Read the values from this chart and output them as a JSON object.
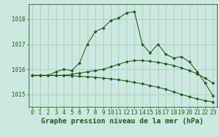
{
  "background_color": "#cce8e0",
  "grid_color": "#aaccbb",
  "line_color": "#1a5c1a",
  "xlabel": "Graphe pression niveau de la mer (hPa)",
  "xlabel_fontsize": 7.5,
  "tick_fontsize": 6,
  "yticks": [
    1015,
    1016,
    1017,
    1018
  ],
  "xticks": [
    0,
    1,
    2,
    3,
    4,
    5,
    6,
    7,
    8,
    9,
    10,
    11,
    12,
    13,
    14,
    15,
    16,
    17,
    18,
    19,
    20,
    21,
    22,
    23
  ],
  "xlim": [
    -0.5,
    23.5
  ],
  "ylim": [
    1014.5,
    1018.6
  ],
  "series": {
    "line1": [
      1015.75,
      1015.75,
      1015.75,
      1015.9,
      1016.0,
      1015.95,
      1016.25,
      1017.0,
      1017.5,
      1017.65,
      1017.95,
      1018.05,
      1018.25,
      1018.3,
      1017.0,
      1016.65,
      1017.0,
      1016.6,
      1016.45,
      1016.5,
      1016.3,
      1015.9,
      1015.45,
      1014.95
    ],
    "line2": [
      1015.75,
      1015.75,
      1015.75,
      1015.75,
      1015.75,
      1015.8,
      1015.85,
      1015.9,
      1015.95,
      1016.0,
      1016.1,
      1016.2,
      1016.3,
      1016.35,
      1016.35,
      1016.32,
      1016.28,
      1016.22,
      1016.15,
      1016.05,
      1015.95,
      1015.82,
      1015.65,
      1015.45
    ],
    "line3": [
      1015.75,
      1015.75,
      1015.75,
      1015.75,
      1015.75,
      1015.74,
      1015.72,
      1015.7,
      1015.68,
      1015.65,
      1015.62,
      1015.58,
      1015.53,
      1015.48,
      1015.42,
      1015.35,
      1015.28,
      1015.2,
      1015.1,
      1015.0,
      1014.9,
      1014.82,
      1014.75,
      1014.7
    ]
  }
}
